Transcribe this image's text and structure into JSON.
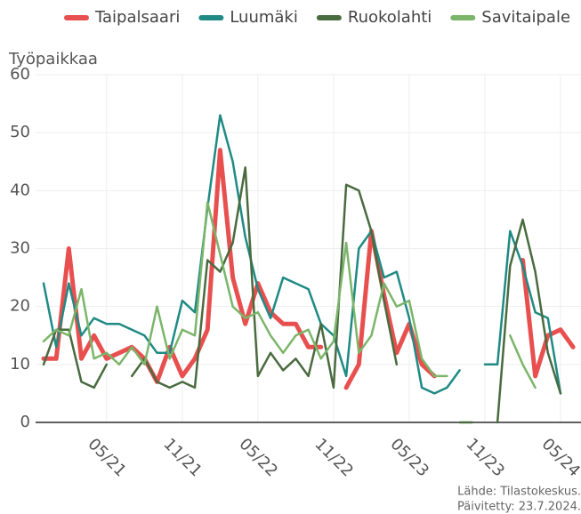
{
  "chart_data": {
    "type": "line",
    "y_label": "Työpaikkaa",
    "caption": [
      "Lähde: Tilastokeskus.",
      "Päivitetty: 23.7.2024."
    ],
    "categories": [
      null,
      null,
      null,
      null,
      null,
      "05/21",
      null,
      null,
      null,
      null,
      null,
      "11/21",
      null,
      null,
      null,
      null,
      null,
      "05/22",
      null,
      null,
      null,
      null,
      null,
      "11/22",
      null,
      null,
      null,
      null,
      null,
      "05/23",
      null,
      null,
      null,
      null,
      null,
      "11/23",
      null,
      null,
      null,
      null,
      null,
      "05/24",
      null
    ],
    "ylim": [
      0,
      60
    ],
    "yticks": [
      0,
      10,
      20,
      30,
      40,
      50,
      60
    ],
    "grid": true,
    "legend": "top",
    "series": [
      {
        "name": "Taipalsaari",
        "color": "#e8504f",
        "width": 5,
        "values": [
          11,
          11,
          30,
          11,
          15,
          11,
          12,
          13,
          11,
          7,
          13,
          8,
          11,
          16,
          47,
          25,
          17,
          24,
          19,
          17,
          17,
          13,
          13,
          null,
          6,
          10,
          33,
          22,
          12,
          17,
          10,
          8,
          null,
          null,
          null,
          null,
          null,
          null,
          28,
          8,
          15,
          16,
          13
        ]
      },
      {
        "name": "Luumäki",
        "color": "#1f8a84",
        "width": 2.5,
        "values": [
          24,
          13,
          24,
          15,
          18,
          17,
          17,
          16,
          15,
          12,
          12,
          21,
          19,
          37,
          53,
          45,
          32,
          23,
          18,
          25,
          24,
          23,
          17,
          15,
          8,
          30,
          33,
          25,
          26,
          18,
          6,
          5,
          6,
          9,
          null,
          10,
          10,
          33,
          27,
          19,
          18,
          5,
          null
        ]
      },
      {
        "name": "Ruokolahti",
        "color": "#4a6b3f",
        "width": 2.5,
        "values": [
          10,
          16,
          16,
          7,
          6,
          10,
          null,
          8,
          11,
          7,
          6,
          7,
          6,
          28,
          26,
          31,
          44,
          8,
          12,
          9,
          11,
          8,
          17,
          6,
          41,
          40,
          33,
          21,
          10,
          null,
          null,
          null,
          null,
          0,
          0,
          null,
          0,
          27,
          35,
          26,
          12,
          5,
          null
        ]
      },
      {
        "name": "Savitaipale",
        "color": "#7bb56a",
        "width": 2.5,
        "values": [
          14,
          16,
          15,
          23,
          11,
          12,
          10,
          13,
          10,
          20,
          11,
          16,
          15,
          38,
          29,
          20,
          18,
          19,
          15,
          12,
          15,
          16,
          11,
          14,
          31,
          12,
          15,
          24,
          20,
          21,
          11,
          8,
          8,
          null,
          null,
          null,
          null,
          15,
          10,
          6,
          null,
          null,
          null
        ]
      }
    ]
  }
}
